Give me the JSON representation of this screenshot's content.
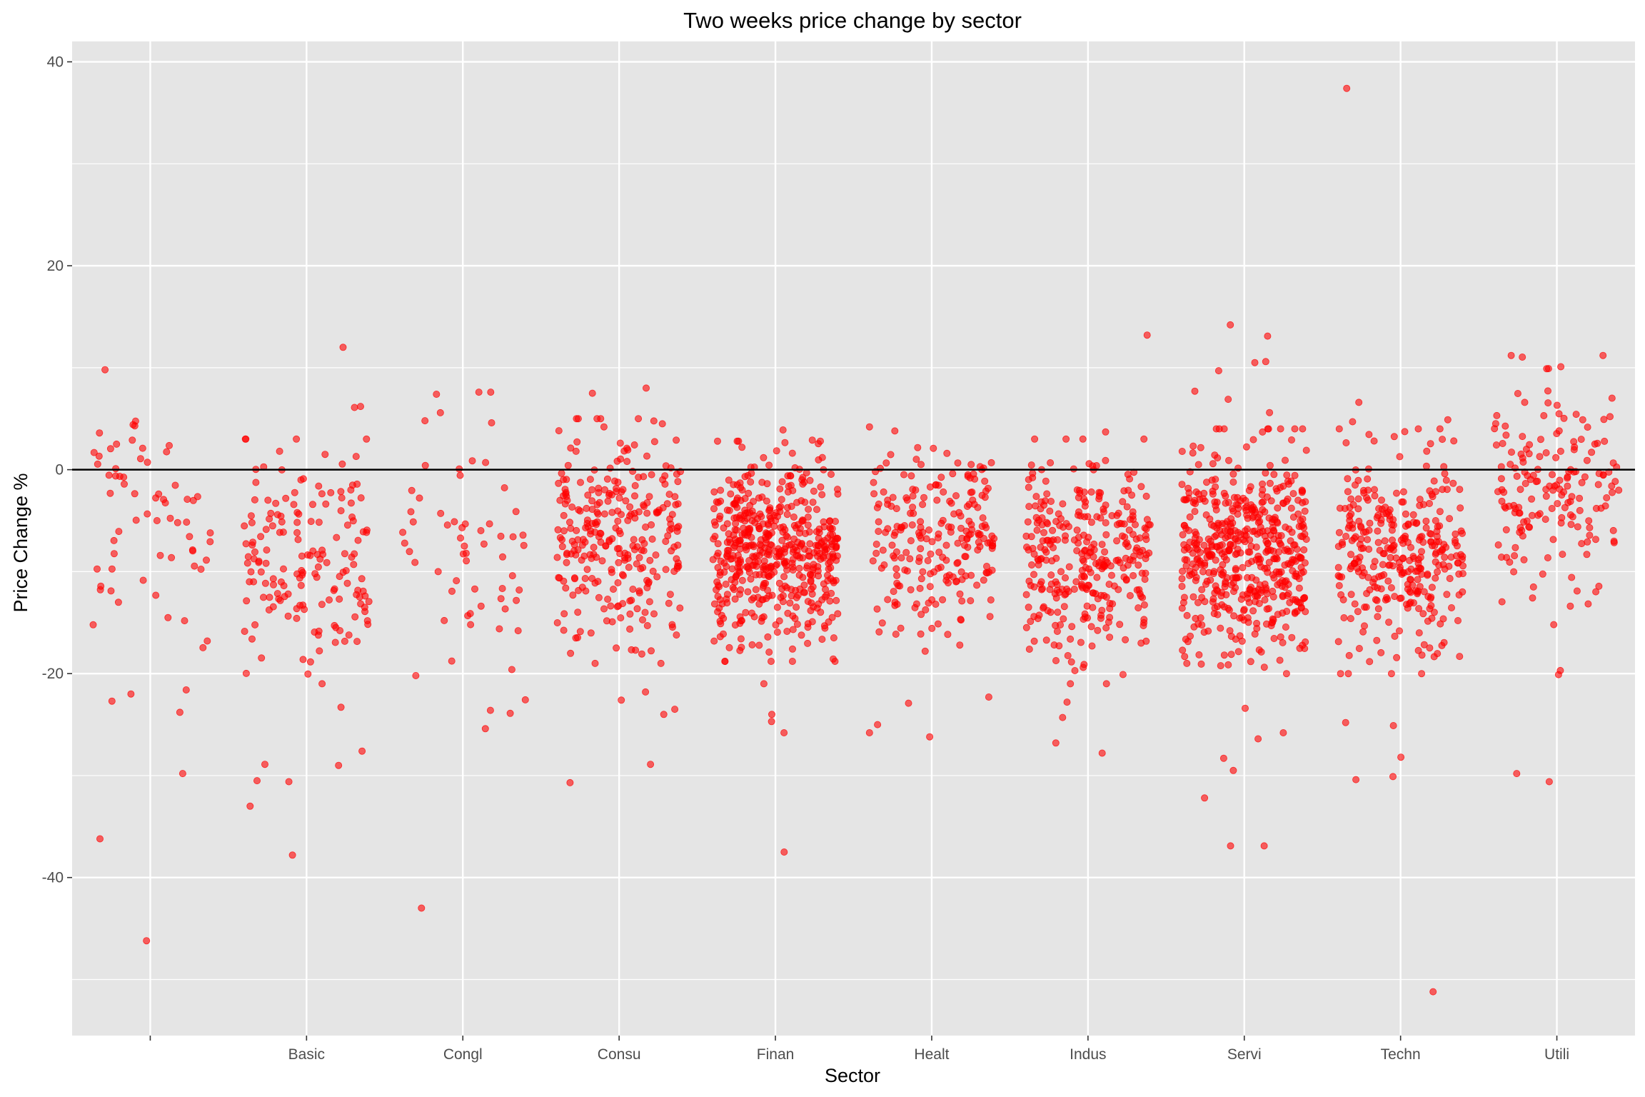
{
  "chart_data": {
    "type": "scatter",
    "title": "Two weeks price change by sector",
    "xlabel": "Sector",
    "ylabel": "Price Change %",
    "categories": [
      "",
      "Basic",
      "Congl",
      "Consu",
      "Finan",
      "Healt",
      "Indus",
      "Servi",
      "Techn",
      "Utili"
    ],
    "ylim": [
      -55.5,
      42
    ],
    "yticks": [
      40,
      20,
      0,
      -20,
      -40
    ],
    "ytick_labels": [
      "40",
      "20",
      "0",
      "-20",
      "-40"
    ],
    "reference_line": 0,
    "grid": true,
    "jitter_width": 0.4,
    "point_color": "#ff0000",
    "panel_color": "#e5e5e5",
    "grid_color": "#ffffff",
    "series": [
      {
        "category": "",
        "count": 60,
        "center": -7.0,
        "spread": 7.0,
        "outliers": [
          2.1,
          4.3,
          2.5,
          0.1,
          -16.8,
          -22.7,
          -21.6,
          -22.0,
          -29.8,
          -36.2,
          -46.2
        ]
      },
      {
        "category": "Basic",
        "count": 160,
        "center": -9.0,
        "spread": 5.0,
        "outliers": [
          12.0,
          6.1,
          6.2,
          1.8,
          1.5,
          -27.6,
          -29.0,
          -30.5,
          -30.6,
          -33.0,
          -37.8,
          -28.9,
          -23.3
        ]
      },
      {
        "category": "Congl",
        "count": 55,
        "center": -8.0,
        "spread": 6.5,
        "outliers": [
          7.4,
          4.6,
          4.8,
          0.7,
          -19.6,
          -20.2,
          -23.9,
          -25.4,
          -43.0
        ]
      },
      {
        "category": "Consu",
        "count": 280,
        "center": -7.0,
        "spread": 5.0,
        "outliers": [
          8.0,
          7.5,
          4.5,
          4.2,
          -21.8,
          -22.6,
          -23.5,
          -24.0,
          -28.9,
          -30.7
        ]
      },
      {
        "category": "Finan",
        "count": 520,
        "center": -8.0,
        "spread": 4.5,
        "outliers": [
          3.9,
          2.9,
          -21.0,
          -24.0,
          -24.7,
          -25.8,
          -37.5
        ]
      },
      {
        "category": "Healt",
        "count": 220,
        "center": -7.0,
        "spread": 4.5,
        "outliers": [
          4.2,
          1.6,
          -22.3,
          -22.9,
          -25.0,
          -25.8,
          -26.2
        ]
      },
      {
        "category": "Indus",
        "count": 320,
        "center": -9.0,
        "spread": 5.0,
        "outliers": [
          13.2,
          3.7,
          -22.8,
          -24.3,
          -26.8,
          -27.8
        ]
      },
      {
        "category": "Servi",
        "count": 520,
        "center": -8.0,
        "spread": 5.0,
        "outliers": [
          14.2,
          13.1,
          10.6,
          10.5,
          9.7,
          7.7,
          6.9,
          5.6,
          -23.4,
          -25.8,
          -26.4,
          -28.3,
          -29.5,
          -32.2,
          -36.9,
          -36.9
        ]
      },
      {
        "category": "Techn",
        "count": 330,
        "center": -8.0,
        "spread": 5.0,
        "outliers": [
          37.4,
          6.6,
          4.9,
          4.7,
          -24.8,
          -25.1,
          -28.2,
          -30.1,
          -30.4,
          -51.2
        ]
      },
      {
        "category": "Utili",
        "count": 170,
        "center": -2.0,
        "spread": 5.5,
        "outliers": [
          9.9,
          5.3,
          5.2,
          -19.7,
          -20.1,
          -29.8,
          -30.6
        ]
      }
    ]
  }
}
